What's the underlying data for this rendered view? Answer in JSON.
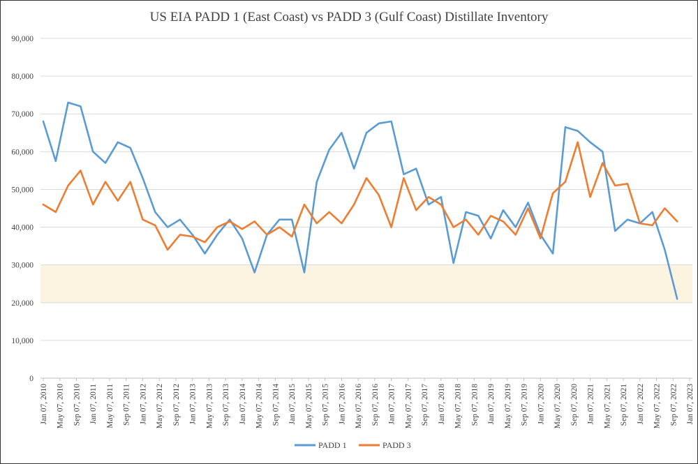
{
  "chart_data": {
    "type": "line",
    "title": "US EIA PADD 1 (East Coast) vs PADD 3 (Gulf Coast) Distillate Inventory",
    "xlabel": "",
    "ylabel": "",
    "ylim": [
      0,
      90000
    ],
    "y_ticks": [
      "0",
      "10,000",
      "20,000",
      "30,000",
      "40,000",
      "50,000",
      "60,000",
      "70,000",
      "80,000",
      "90,000"
    ],
    "x_ticks": [
      "Jan 07, 2010",
      "May 07, 2010",
      "Sep 07, 2010",
      "Jan 07, 2011",
      "May 07, 2011",
      "Sep 07, 2011",
      "Jan 07, 2012",
      "May 07, 2012",
      "Sep 07, 2012",
      "Jan 07, 2013",
      "May 07, 2013",
      "Sep 07, 2013",
      "Jan 07, 2014",
      "May 07, 2014",
      "Sep 07, 2014",
      "Jan 07, 2015",
      "May 07, 2015",
      "Sep 07, 2015",
      "Jan 07, 2016",
      "May 07, 2016",
      "Sep 07, 2016",
      "Jan 07, 2017",
      "May 07, 2017",
      "Sep 07, 2017",
      "Jan 07, 2018",
      "May 07, 2018",
      "Sep 07, 2018",
      "Jan 07, 2019",
      "May 07, 2019",
      "Sep 07, 2019",
      "Jan 07, 2020",
      "May 07, 2020",
      "Sep 07, 2020",
      "Jan 07, 2021",
      "May 07, 2021",
      "Sep 07, 2021",
      "Jan 07, 2022",
      "May 07, 2022",
      "Sep 07, 2022",
      "Jan 07, 2023"
    ],
    "shaded_band": {
      "from": 20000,
      "to": 30000,
      "color": "#fdf3e1"
    },
    "grid": true,
    "legend_position": "bottom",
    "x": [
      "Jan 2010",
      "Apr 2010",
      "Jul 2010",
      "Oct 2010",
      "Jan 2011",
      "Apr 2011",
      "Jul 2011",
      "Oct 2011",
      "Jan 2012",
      "Apr 2012",
      "Jul 2012",
      "Oct 2012",
      "Jan 2013",
      "Apr 2013",
      "Jul 2013",
      "Oct 2013",
      "Jan 2014",
      "Apr 2014",
      "Jul 2014",
      "Oct 2014",
      "Jan 2015",
      "Apr 2015",
      "Jul 2015",
      "Oct 2015",
      "Jan 2016",
      "Apr 2016",
      "Jul 2016",
      "Oct 2016",
      "Jan 2017",
      "Apr 2017",
      "Jul 2017",
      "Oct 2017",
      "Jan 2018",
      "Apr 2018",
      "Jul 2018",
      "Oct 2018",
      "Jan 2019",
      "Apr 2019",
      "Jul 2019",
      "Oct 2019",
      "Jan 2020",
      "Apr 2020",
      "Jul 2020",
      "Oct 2020",
      "Jan 2021",
      "Apr 2021",
      "Jul 2021",
      "Oct 2021",
      "Jan 2022",
      "Apr 2022",
      "Jul 2022",
      "Oct 2022"
    ],
    "series": [
      {
        "name": "PADD 1",
        "color": "#5b9bd5",
        "values": [
          68000,
          57500,
          73000,
          72000,
          60000,
          57000,
          62500,
          61000,
          53000,
          44000,
          40000,
          42000,
          38000,
          33000,
          38000,
          42000,
          37000,
          28000,
          38000,
          42000,
          42000,
          28000,
          52000,
          60500,
          65000,
          55500,
          65000,
          67500,
          68000,
          54000,
          55500,
          46000,
          48000,
          30500,
          44000,
          43000,
          37000,
          44500,
          40000,
          46500,
          38000,
          33000,
          66500,
          65500,
          62500,
          60000,
          39000,
          42000,
          41000,
          44000,
          34000,
          21000
        ]
      },
      {
        "name": "PADD 3",
        "color": "#ed7d31",
        "values": [
          46000,
          44000,
          51000,
          55000,
          46000,
          52000,
          47000,
          52000,
          42000,
          40500,
          34000,
          38000,
          37500,
          36000,
          40000,
          41500,
          39500,
          41500,
          38000,
          40000,
          37500,
          46000,
          41000,
          44000,
          41000,
          46000,
          53000,
          48500,
          40000,
          53000,
          44500,
          48000,
          46000,
          40000,
          42000,
          38000,
          43000,
          41500,
          38000,
          45000,
          37000,
          49000,
          52000,
          62500,
          48000,
          57000,
          51000,
          51500,
          41000,
          40500,
          45000,
          41500
        ]
      }
    ]
  }
}
